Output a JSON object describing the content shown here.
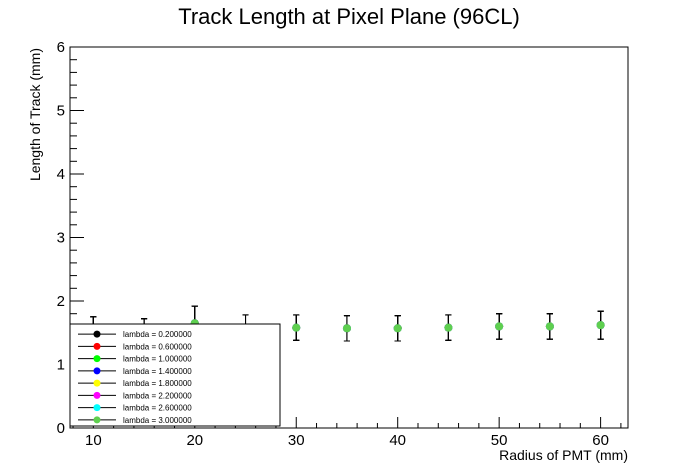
{
  "chart_data": {
    "type": "scatter",
    "title": "Track Length at Pixel Plane (96CL)",
    "xlabel": "Radius of PMT (mm)",
    "ylabel": "Length of Track (mm)",
    "xlim": [
      7.7,
      62.7
    ],
    "ylim": [
      0,
      6
    ],
    "x_ticks": [
      10,
      20,
      30,
      40,
      50,
      60
    ],
    "y_ticks": [
      0,
      1,
      2,
      3,
      4,
      5,
      6
    ],
    "x_tick_labels": [
      "10",
      "20",
      "30",
      "40",
      "50",
      "60"
    ],
    "y_tick_labels": [
      "0",
      "1",
      "2",
      "3",
      "4",
      "5",
      "6"
    ],
    "grid": false,
    "legend_position": "bottom-left",
    "x": [
      10,
      15,
      20,
      25,
      30,
      35,
      40,
      45,
      50,
      55,
      60
    ],
    "series": [
      {
        "name": "lambda = 0.200000",
        "color": "#000000",
        "values": [
          1.55,
          1.52,
          1.65,
          1.58,
          1.58,
          1.57,
          1.57,
          1.58,
          1.6,
          1.6,
          1.62
        ],
        "errors": [
          0.2,
          0.2,
          0.27,
          0.2,
          0.2,
          0.2,
          0.2,
          0.2,
          0.2,
          0.2,
          0.22
        ]
      },
      {
        "name": "lambda = 0.600000",
        "color": "#ff0000",
        "values": [
          1.55,
          1.52,
          1.65,
          1.58,
          1.58,
          1.57,
          1.57,
          1.58,
          1.6,
          1.6,
          1.62
        ],
        "errors": [
          0.2,
          0.2,
          0.27,
          0.2,
          0.2,
          0.2,
          0.2,
          0.2,
          0.2,
          0.2,
          0.22
        ]
      },
      {
        "name": "lambda = 1.000000",
        "color": "#00ff00",
        "values": [
          1.55,
          1.52,
          1.65,
          1.58,
          1.58,
          1.57,
          1.57,
          1.58,
          1.6,
          1.6,
          1.62
        ],
        "errors": [
          0.2,
          0.2,
          0.27,
          0.2,
          0.2,
          0.2,
          0.2,
          0.2,
          0.2,
          0.2,
          0.22
        ]
      },
      {
        "name": "lambda = 1.400000",
        "color": "#0000ff",
        "values": [
          1.55,
          1.52,
          1.65,
          1.58,
          1.58,
          1.57,
          1.57,
          1.58,
          1.6,
          1.6,
          1.62
        ],
        "errors": [
          0.2,
          0.2,
          0.27,
          0.2,
          0.2,
          0.2,
          0.2,
          0.2,
          0.2,
          0.2,
          0.22
        ]
      },
      {
        "name": "lambda = 1.800000",
        "color": "#ffff00",
        "values": [
          1.55,
          1.52,
          1.65,
          1.58,
          1.58,
          1.57,
          1.57,
          1.58,
          1.6,
          1.6,
          1.62
        ],
        "errors": [
          0.2,
          0.2,
          0.27,
          0.2,
          0.2,
          0.2,
          0.2,
          0.2,
          0.2,
          0.2,
          0.22
        ]
      },
      {
        "name": "lambda = 2.200000",
        "color": "#ff00ff",
        "values": [
          1.55,
          1.52,
          1.65,
          1.58,
          1.58,
          1.57,
          1.57,
          1.58,
          1.6,
          1.6,
          1.62
        ],
        "errors": [
          0.2,
          0.2,
          0.27,
          0.2,
          0.2,
          0.2,
          0.2,
          0.2,
          0.2,
          0.2,
          0.22
        ]
      },
      {
        "name": "lambda = 2.600000",
        "color": "#00ffff",
        "values": [
          1.55,
          1.52,
          1.65,
          1.58,
          1.58,
          1.57,
          1.57,
          1.58,
          1.6,
          1.6,
          1.62
        ],
        "errors": [
          0.2,
          0.2,
          0.27,
          0.2,
          0.2,
          0.2,
          0.2,
          0.2,
          0.2,
          0.2,
          0.22
        ]
      },
      {
        "name": "lambda = 3.000000",
        "color": "#5fcf4f",
        "values": [
          1.55,
          1.52,
          1.65,
          1.58,
          1.58,
          1.57,
          1.57,
          1.58,
          1.6,
          1.6,
          1.62
        ],
        "errors": [
          0.2,
          0.2,
          0.27,
          0.2,
          0.2,
          0.2,
          0.2,
          0.2,
          0.2,
          0.2,
          0.22
        ]
      }
    ]
  }
}
